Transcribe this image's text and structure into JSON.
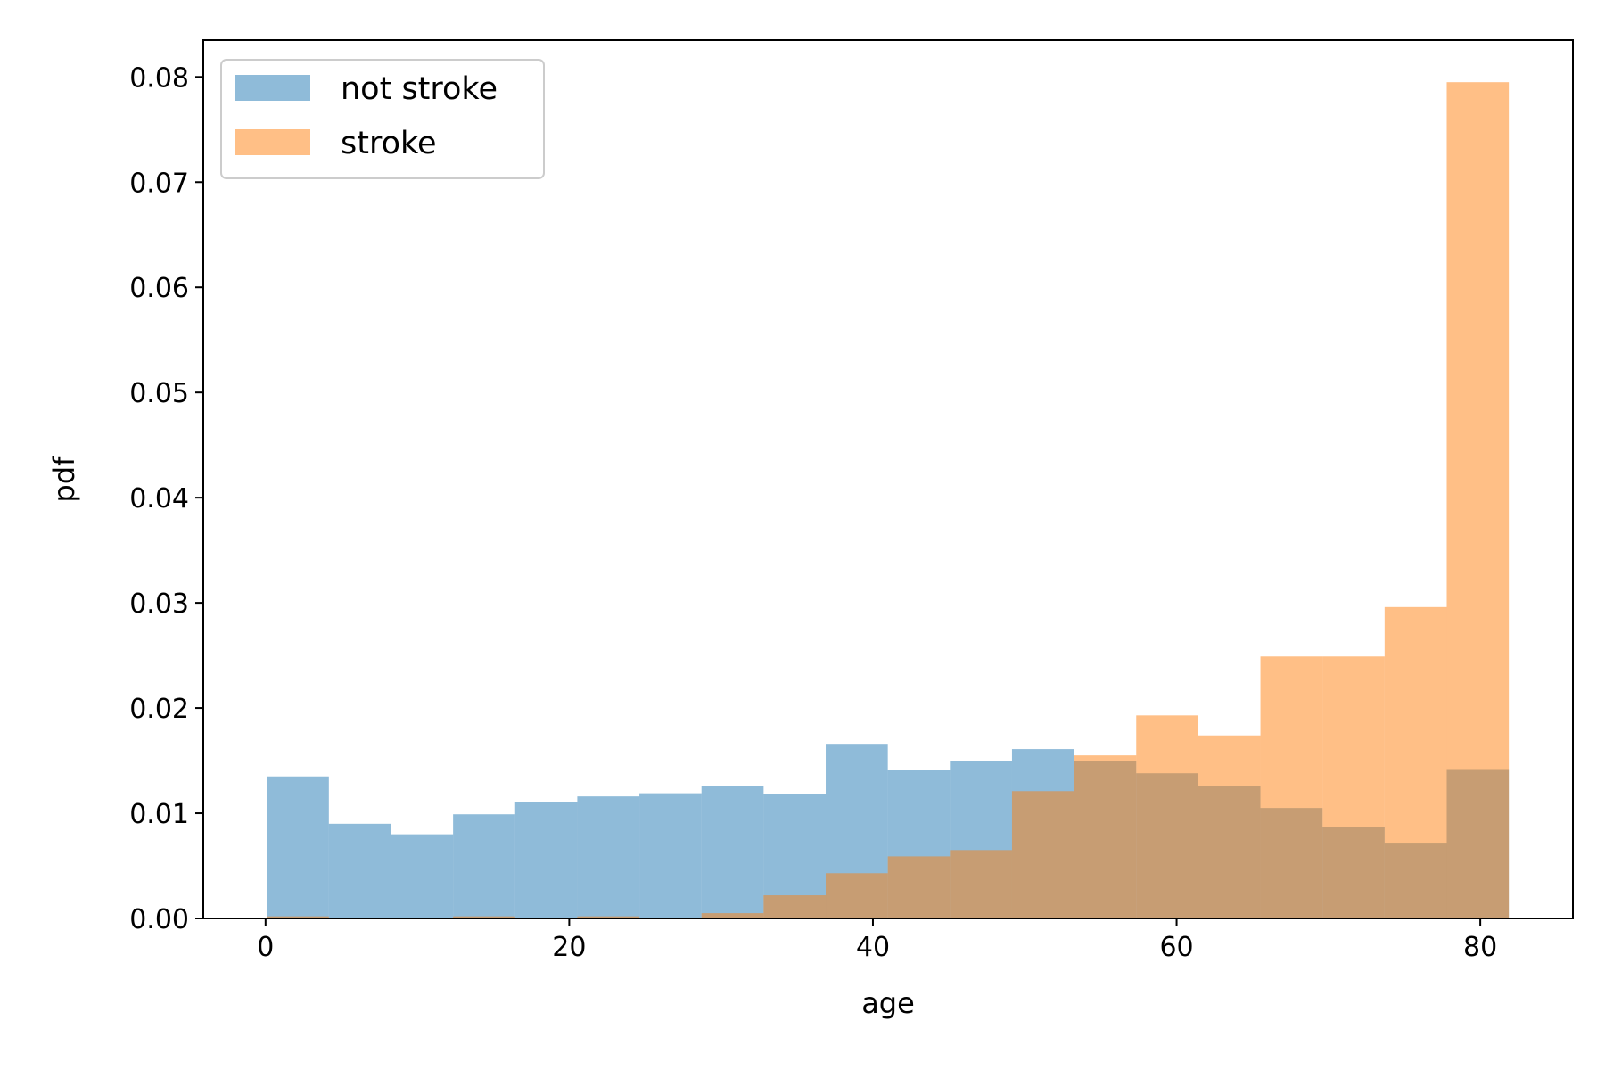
{
  "chart_data": {
    "type": "bar",
    "subtype": "overlaid-histogram",
    "title": "",
    "xlabel": "age",
    "ylabel": "pdf",
    "xlim": [
      -4.1,
      86.1
    ],
    "ylim": [
      0,
      0.0835
    ],
    "xticks": [
      0,
      20,
      40,
      60,
      80
    ],
    "xtick_labels": [
      "0",
      "20",
      "40",
      "60",
      "80"
    ],
    "yticks": [
      0,
      0.01,
      0.02,
      0.03,
      0.04,
      0.05,
      0.06,
      0.07,
      0.08
    ],
    "ytick_labels": [
      "0.00",
      "0.01",
      "0.02",
      "0.03",
      "0.04",
      "0.05",
      "0.06",
      "0.07",
      "0.08"
    ],
    "grid": false,
    "legend_position": "top-left",
    "bin_edges": [
      0.08,
      4.17,
      8.26,
      12.35,
      16.44,
      20.53,
      24.62,
      28.71,
      32.8,
      36.89,
      40.98,
      45.07,
      49.16,
      53.25,
      57.34,
      61.43,
      65.52,
      69.61,
      73.7,
      77.79,
      81.88
    ],
    "series": [
      {
        "name": "not stroke",
        "color": "#1f77b4",
        "opacity": 0.5,
        "values": [
          0.0135,
          0.009,
          0.008,
          0.0099,
          0.0111,
          0.0116,
          0.0119,
          0.0126,
          0.0118,
          0.0166,
          0.0141,
          0.015,
          0.0161,
          0.015,
          0.0138,
          0.0126,
          0.0105,
          0.0087,
          0.0072,
          0.0142
        ]
      },
      {
        "name": "stroke",
        "color": "#ff7f0e",
        "opacity": 0.5,
        "values": [
          0.0002,
          0.0,
          0.0,
          0.0002,
          0.0,
          0.0002,
          0.0,
          0.0005,
          0.0022,
          0.0043,
          0.0059,
          0.0065,
          0.0121,
          0.0155,
          0.0193,
          0.0174,
          0.0249,
          0.0249,
          0.0296,
          0.0795
        ]
      }
    ]
  }
}
